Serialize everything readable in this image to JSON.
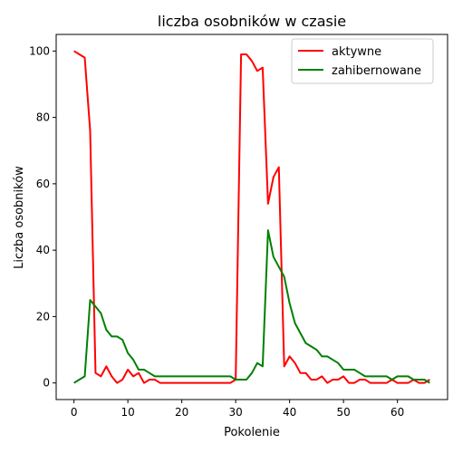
{
  "chart_data": {
    "type": "line",
    "title": "liczba osobników w czasie",
    "xlabel": "Pokolenie",
    "ylabel": "Liczba osobników",
    "xlim": [
      -3.3,
      69.3
    ],
    "ylim": [
      -5,
      105
    ],
    "xticks": [
      0,
      10,
      20,
      30,
      40,
      50,
      60
    ],
    "yticks": [
      0,
      20,
      40,
      60,
      80,
      100
    ],
    "grid": false,
    "legend": "top-right",
    "series": [
      {
        "name": "aktywne",
        "color": "#ff0000",
        "x": [
          0,
          1,
          2,
          3,
          4,
          5,
          6,
          7,
          8,
          9,
          10,
          11,
          12,
          13,
          14,
          15,
          16,
          17,
          18,
          19,
          20,
          21,
          22,
          23,
          24,
          25,
          26,
          27,
          28,
          29,
          30,
          31,
          32,
          33,
          34,
          35,
          36,
          37,
          38,
          39,
          40,
          41,
          42,
          43,
          44,
          45,
          46,
          47,
          48,
          49,
          50,
          51,
          52,
          53,
          54,
          55,
          56,
          57,
          58,
          59,
          60,
          61,
          62,
          63,
          64,
          65,
          66
        ],
        "y": [
          100,
          99,
          98,
          76,
          3,
          2,
          5,
          2,
          0,
          1,
          4,
          2,
          3,
          0,
          1,
          1,
          0,
          0,
          0,
          0,
          0,
          0,
          0,
          0,
          0,
          0,
          0,
          0,
          0,
          0,
          1,
          99,
          99,
          97,
          94,
          95,
          54,
          62,
          65,
          5,
          8,
          6,
          3,
          3,
          1,
          1,
          2,
          0,
          1,
          1,
          2,
          0,
          0,
          1,
          1,
          0,
          0,
          0,
          0,
          1,
          0,
          0,
          0,
          1,
          0,
          0,
          1
        ]
      },
      {
        "name": "zahibernowane",
        "color": "#008000",
        "x": [
          0,
          1,
          2,
          3,
          4,
          5,
          6,
          7,
          8,
          9,
          10,
          11,
          12,
          13,
          14,
          15,
          16,
          17,
          18,
          19,
          20,
          21,
          22,
          23,
          24,
          25,
          26,
          27,
          28,
          29,
          30,
          31,
          32,
          33,
          34,
          35,
          36,
          37,
          38,
          39,
          40,
          41,
          42,
          43,
          44,
          45,
          46,
          47,
          48,
          49,
          50,
          51,
          52,
          53,
          54,
          55,
          56,
          57,
          58,
          59,
          60,
          61,
          62,
          63,
          64,
          65,
          66
        ],
        "y": [
          0,
          1,
          2,
          25,
          23,
          21,
          16,
          14,
          14,
          13,
          9,
          7,
          4,
          4,
          3,
          2,
          2,
          2,
          2,
          2,
          2,
          2,
          2,
          2,
          2,
          2,
          2,
          2,
          2,
          2,
          1,
          1,
          1,
          3,
          6,
          5,
          46,
          38,
          35,
          32,
          24,
          18,
          15,
          12,
          11,
          10,
          8,
          8,
          7,
          6,
          4,
          4,
          4,
          3,
          2,
          2,
          2,
          2,
          2,
          1,
          2,
          2,
          2,
          1,
          1,
          1,
          0
        ]
      }
    ]
  }
}
